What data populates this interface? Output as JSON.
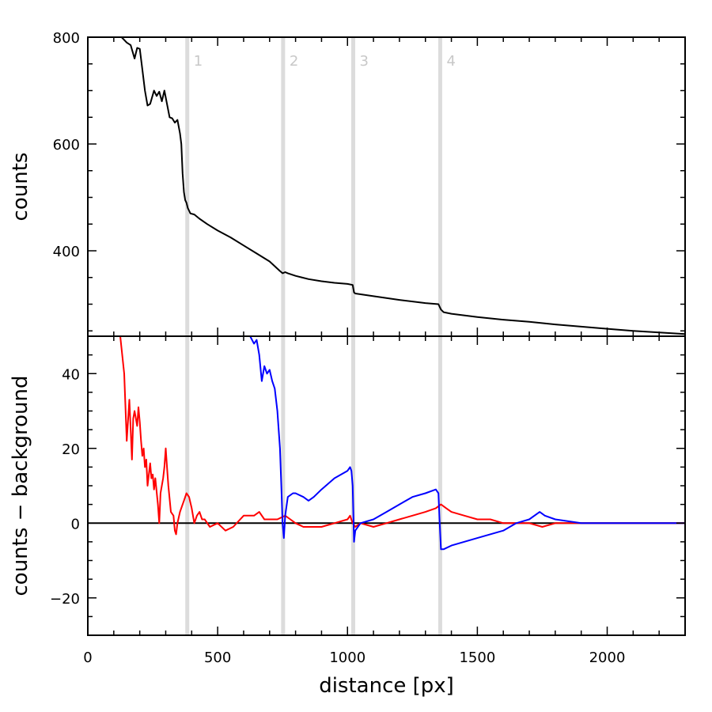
{
  "chart_data": [
    {
      "type": "line",
      "panel": "top",
      "xlabel": "",
      "ylabel": "counts",
      "xlim": [
        0,
        2300
      ],
      "ylim": [
        240,
        800
      ],
      "yticks": [
        400,
        600,
        800
      ],
      "grid": false,
      "series": [
        {
          "color": "#000000",
          "x": [
            130,
            150,
            165,
            180,
            190,
            200,
            210,
            220,
            230,
            240,
            255,
            265,
            275,
            285,
            295,
            305,
            315,
            325,
            335,
            345,
            355,
            360,
            365,
            370,
            375,
            380,
            385,
            395,
            410,
            430,
            460,
            500,
            550,
            600,
            650,
            700,
            740,
            750,
            760,
            770,
            800,
            850,
            900,
            950,
            1000,
            1020,
            1025,
            1030,
            1100,
            1200,
            1300,
            1350,
            1360,
            1370,
            1400,
            1500,
            1600,
            1700,
            1800,
            1900,
            2000,
            2100,
            2200,
            2300
          ],
          "y": [
            800,
            790,
            785,
            760,
            780,
            778,
            740,
            700,
            672,
            675,
            700,
            690,
            698,
            680,
            700,
            675,
            650,
            648,
            640,
            645,
            620,
            600,
            545,
            510,
            495,
            490,
            480,
            470,
            468,
            460,
            450,
            438,
            425,
            410,
            395,
            380,
            362,
            358,
            360,
            358,
            353,
            347,
            343,
            340,
            338,
            336,
            322,
            320,
            315,
            308,
            302,
            300,
            290,
            285,
            282,
            276,
            271,
            267,
            262,
            258,
            254,
            250,
            247,
            244
          ]
        }
      ],
      "markers": [
        {
          "label": "1",
          "x": 383
        },
        {
          "label": "2",
          "x": 752
        },
        {
          "label": "3",
          "x": 1022
        },
        {
          "label": "4",
          "x": 1357
        }
      ]
    },
    {
      "type": "line",
      "panel": "bottom",
      "xlabel": "distance [px]",
      "ylabel": "counts − background",
      "xlim": [
        0,
        2300
      ],
      "ylim": [
        -30,
        50
      ],
      "xticks": [
        0,
        500,
        1000,
        1500,
        2000
      ],
      "yticks": [
        -20,
        0,
        20,
        40
      ],
      "zero_line": true,
      "grid": false,
      "series": [
        {
          "color": "#ff0000",
          "x": [
            125,
            140,
            150,
            160,
            165,
            170,
            175,
            180,
            190,
            195,
            200,
            205,
            210,
            215,
            220,
            225,
            230,
            240,
            245,
            250,
            255,
            260,
            270,
            275,
            280,
            290,
            295,
            300,
            305,
            310,
            320,
            330,
            335,
            340,
            345,
            355,
            370,
            380,
            390,
            400,
            410,
            420,
            430,
            440,
            450,
            470,
            500,
            530,
            560,
            600,
            640,
            660,
            680,
            700,
            730,
            760,
            780,
            800,
            830,
            860,
            900,
            950,
            1000,
            1010,
            1020,
            1030,
            1050,
            1100,
            1150,
            1200,
            1250,
            1300,
            1340,
            1360,
            1380,
            1400,
            1450,
            1500,
            1550,
            1600,
            1650,
            1700,
            1750,
            1800,
            1900,
            2000,
            2100,
            2200,
            2300
          ],
          "y": [
            50,
            40,
            22,
            33,
            25,
            17,
            28,
            30,
            26,
            31,
            27,
            22,
            18,
            20,
            15,
            17,
            10,
            16,
            12,
            13,
            9,
            12,
            5,
            0,
            8,
            12,
            15,
            20,
            15,
            10,
            3,
            2,
            -2,
            -3,
            0,
            3,
            6,
            8,
            7,
            4,
            0,
            2,
            3,
            1,
            1,
            -1,
            0,
            -2,
            -1,
            2,
            2,
            3,
            1,
            1,
            1,
            2,
            1,
            0,
            -1,
            -1,
            -1,
            0,
            1,
            2,
            0,
            -1,
            0,
            -1,
            0,
            1,
            2,
            3,
            4,
            5,
            4,
            3,
            2,
            1,
            1,
            0,
            0,
            0,
            -1,
            0,
            0,
            0,
            0,
            0,
            0
          ]
        },
        {
          "color": "#0000ff",
          "x": [
            625,
            640,
            650,
            660,
            670,
            680,
            690,
            700,
            710,
            720,
            730,
            740,
            745,
            750,
            755,
            760,
            770,
            790,
            800,
            830,
            850,
            870,
            900,
            950,
            1000,
            1010,
            1015,
            1020,
            1025,
            1030,
            1050,
            1100,
            1150,
            1200,
            1250,
            1300,
            1340,
            1350,
            1355,
            1360,
            1370,
            1400,
            1500,
            1600,
            1650,
            1700,
            1740,
            1760,
            1800,
            1900,
            2000,
            2100,
            2200,
            2300
          ],
          "y": [
            50,
            48,
            49,
            45,
            38,
            42,
            40,
            41,
            38,
            36,
            30,
            20,
            10,
            0,
            -4,
            2,
            7,
            8,
            8,
            7,
            6,
            7,
            9,
            12,
            14,
            15,
            14,
            10,
            -5,
            -2,
            0,
            1,
            3,
            5,
            7,
            8,
            9,
            8,
            0,
            -7,
            -7,
            -6,
            -4,
            -2,
            0,
            1,
            3,
            2,
            1,
            0,
            0,
            0,
            0,
            0
          ]
        }
      ],
      "markers": [
        {
          "label": "",
          "x": 383
        },
        {
          "label": "",
          "x": 752
        },
        {
          "label": "",
          "x": 1022
        },
        {
          "label": "",
          "x": 1357
        }
      ]
    }
  ]
}
